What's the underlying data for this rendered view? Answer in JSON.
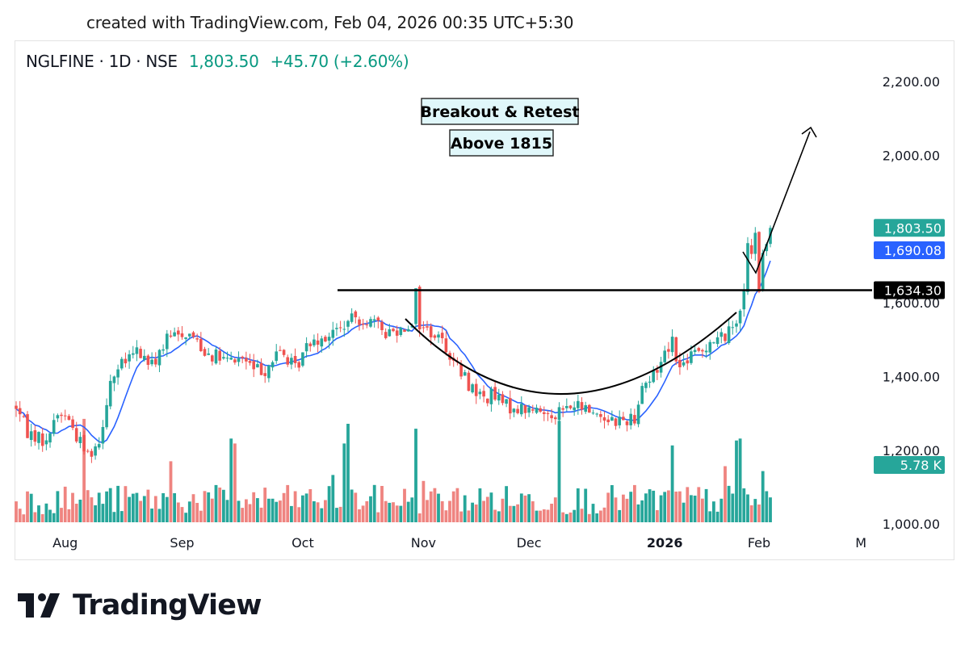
{
  "caption": "created with TradingView.com, Feb 04, 2026 00:35 UTC+5:30",
  "header": {
    "symbol": "NGLFINE · 1D · NSE",
    "last_price": "1,803.50",
    "change": "+45.70 (+2.60%)"
  },
  "brand": {
    "logo_text": "TradingView"
  },
  "colors": {
    "up": "#26a69a",
    "down": "#ef5350",
    "volume_up": "#26a69a",
    "volume_down": "#ef8480",
    "ma_line": "#2962ff",
    "price_tag": "#26a69a",
    "ma_tag": "#2962ff",
    "level_tag": "#000000",
    "volume_tag": "#26a69a",
    "note_bg": "#e0f7fa"
  },
  "chart_data": {
    "type": "candlestick",
    "title": "NGLFINE · 1D · NSE",
    "y_ticks": [
      "2,200.00",
      "2,000.00",
      "1,600.00",
      "1,400.00",
      "1,200.00",
      "1,000.00"
    ],
    "y_tick_values": [
      2200,
      2000,
      1600,
      1400,
      1200,
      1000
    ],
    "ylim": [
      902,
      2312
    ],
    "x_ticks": [
      {
        "label": "Aug",
        "bold": false,
        "index": 13
      },
      {
        "label": "Sep",
        "bold": false,
        "index": 44
      },
      {
        "label": "Oct",
        "bold": false,
        "index": 76
      },
      {
        "label": "Nov",
        "bold": false,
        "index": 108
      },
      {
        "label": "Dec",
        "bold": false,
        "index": 136
      },
      {
        "label": "2026",
        "bold": true,
        "index": 172
      },
      {
        "label": "Feb",
        "bold": false,
        "index": 197
      },
      {
        "label": "M",
        "bold": false,
        "index": 224
      }
    ],
    "grid": false,
    "moving_average": {
      "last_value": "1,690.08"
    },
    "resistance_level": {
      "value": 1634.3,
      "label": "1,634.30"
    },
    "last_price_tag": {
      "value": 1803.5,
      "label": "1,803.50"
    },
    "volume_tag": {
      "label": "5.78 K"
    },
    "annotations": [
      {
        "text": "Breakout & Retest"
      },
      {
        "text": "Above 1815"
      }
    ],
    "anchors": [
      [
        0,
        1320
      ],
      [
        3,
        1250
      ],
      [
        7,
        1230
      ],
      [
        8,
        1215
      ],
      [
        10,
        1290
      ],
      [
        13,
        1300
      ],
      [
        16,
        1240
      ],
      [
        19,
        1190
      ],
      [
        22,
        1225
      ],
      [
        25,
        1390
      ],
      [
        28,
        1430
      ],
      [
        32,
        1470
      ],
      [
        36,
        1430
      ],
      [
        40,
        1500
      ],
      [
        44,
        1520
      ],
      [
        47,
        1510
      ],
      [
        50,
        1470
      ],
      [
        52,
        1460
      ],
      [
        56,
        1440
      ],
      [
        60,
        1450
      ],
      [
        63,
        1420
      ],
      [
        66,
        1420
      ],
      [
        70,
        1470
      ],
      [
        74,
        1420
      ],
      [
        78,
        1500
      ],
      [
        82,
        1510
      ],
      [
        86,
        1530
      ],
      [
        90,
        1560
      ],
      [
        94,
        1550
      ],
      [
        98,
        1520
      ],
      [
        102,
        1530
      ],
      [
        105,
        1550
      ],
      [
        106,
        1630
      ],
      [
        107,
        1540
      ],
      [
        110,
        1520
      ],
      [
        113,
        1500
      ],
      [
        116,
        1440
      ],
      [
        120,
        1380
      ],
      [
        124,
        1340
      ],
      [
        126,
        1350
      ],
      [
        130,
        1320
      ],
      [
        136,
        1310
      ],
      [
        142,
        1300
      ],
      [
        148,
        1320
      ],
      [
        152,
        1310
      ],
      [
        156,
        1290
      ],
      [
        160,
        1280
      ],
      [
        164,
        1290
      ],
      [
        166,
        1380
      ],
      [
        168,
        1390
      ],
      [
        170,
        1420
      ],
      [
        172,
        1470
      ],
      [
        174,
        1500
      ],
      [
        176,
        1420
      ],
      [
        178,
        1450
      ],
      [
        182,
        1470
      ],
      [
        184,
        1500
      ],
      [
        186,
        1500
      ],
      [
        189,
        1520
      ],
      [
        191,
        1560
      ],
      [
        193,
        1620
      ],
      [
        194,
        1770
      ],
      [
        195,
        1720
      ],
      [
        196,
        1780
      ],
      [
        197,
        1640
      ],
      [
        198,
        1720
      ],
      [
        200,
        1800
      ]
    ],
    "volume_spikes": [
      [
        18,
        1.05
      ],
      [
        22,
        0.3
      ],
      [
        41,
        0.62
      ],
      [
        57,
        0.85
      ],
      [
        58,
        0.8
      ],
      [
        84,
        0.48
      ],
      [
        87,
        0.8
      ],
      [
        88,
        1.0
      ],
      [
        106,
        0.95
      ],
      [
        108,
        0.42
      ],
      [
        144,
        1.03
      ],
      [
        174,
        0.78
      ],
      [
        188,
        0.57
      ],
      [
        191,
        0.83
      ],
      [
        192,
        0.85
      ],
      [
        198,
        0.52
      ]
    ],
    "n_candles": 201
  }
}
